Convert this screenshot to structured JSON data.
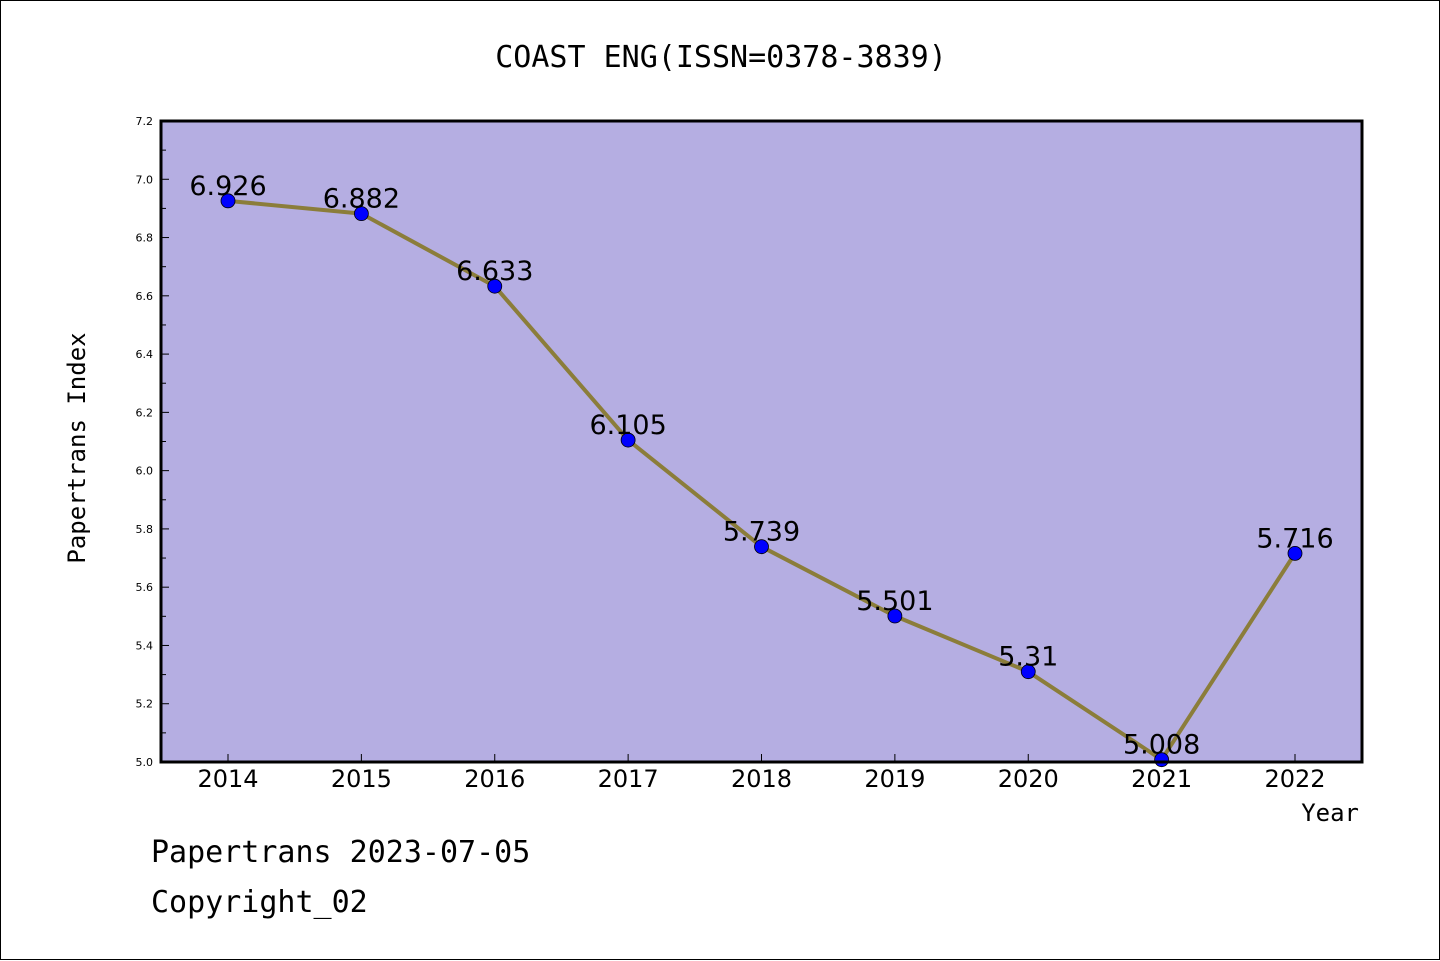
{
  "chart_data": {
    "type": "line",
    "title": "COAST ENG(ISSN=0378-3839)",
    "xlabel": "Year",
    "ylabel": "Papertrans Index",
    "x": [
      "2014",
      "2015",
      "2016",
      "2017",
      "2018",
      "2019",
      "2020",
      "2021",
      "2022"
    ],
    "values": [
      6.926,
      6.882,
      6.633,
      6.105,
      5.739,
      5.501,
      5.31,
      5.008,
      5.716
    ],
    "data_labels": [
      "6.926",
      "6.882",
      "6.633",
      "6.105",
      "5.739",
      "5.501",
      "5.31",
      "5.008",
      "5.716"
    ],
    "ylim": [
      5.0,
      7.2
    ],
    "yticks": [
      "5.0",
      "5.2",
      "5.4",
      "5.6",
      "5.8",
      "6.0",
      "6.2",
      "6.4",
      "6.6",
      "6.8",
      "7.0",
      "7.2"
    ],
    "grid": false,
    "legend": "none",
    "colors": {
      "plot_background": "#b5aee2",
      "line": "#8b7d3a",
      "marker": "#0000ff"
    }
  },
  "footer": {
    "date_text": "Papertrans 2023-07-05",
    "copyright_text": "Copyright_02"
  }
}
